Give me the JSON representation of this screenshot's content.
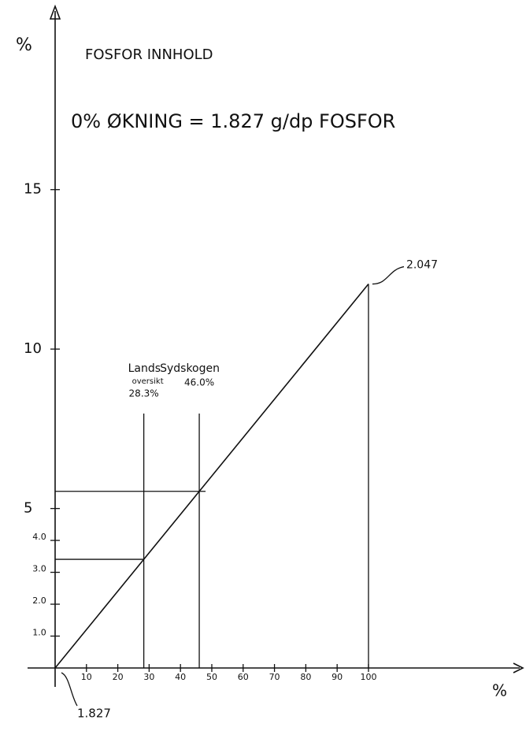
{
  "chart_data": {
    "type": "line",
    "title": "FOSFOR INNHOLD",
    "subtitle": "0% ØKNING = 1.827 g/dp FOSFOR",
    "y_label": "%",
    "x_label": "%",
    "x": [
      0,
      100
    ],
    "series": [
      {
        "color": "#111111",
        "values": [
          0,
          12.04
        ]
      }
    ],
    "xlim": [
      0,
      147
    ],
    "ylim": [
      0,
      20.6
    ],
    "xticks": [
      10,
      20,
      30,
      40,
      50,
      60,
      70,
      80,
      90,
      100
    ],
    "yticks": [
      {
        "value": 1,
        "label": "1.0"
      },
      {
        "value": 2,
        "label": "2.0"
      },
      {
        "value": 3,
        "label": "3.0"
      },
      {
        "value": 4,
        "label": "4.0"
      },
      5,
      10,
      15
    ],
    "markers": [
      {
        "name": "Lands",
        "subname": "oversikt",
        "x": 28.3,
        "x_label": "28.3%"
      },
      {
        "name": "Sydskogen",
        "x": 46.0,
        "x_label": "46.0%"
      }
    ],
    "annotations": [
      {
        "text": "2.047",
        "x": 100,
        "y": 12.04
      },
      {
        "text": "1.827",
        "x": 0,
        "y": 0
      }
    ]
  }
}
